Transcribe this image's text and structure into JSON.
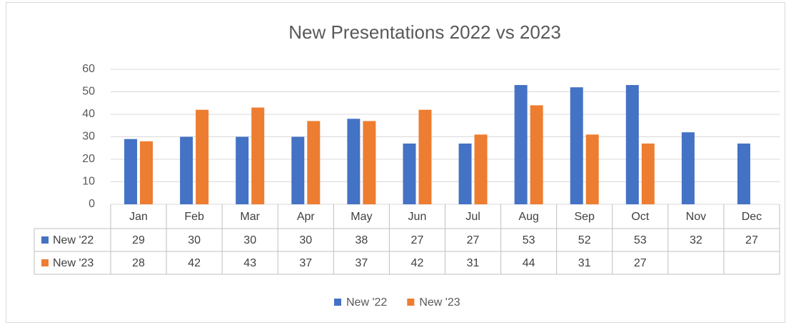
{
  "chart_data": {
    "type": "bar",
    "title": "New Presentations 2022 vs 2023",
    "categories": [
      "Jan",
      "Feb",
      "Mar",
      "Apr",
      "May",
      "Jun",
      "Jul",
      "Aug",
      "Sep",
      "Oct",
      "Nov",
      "Dec"
    ],
    "series": [
      {
        "name": "New '22",
        "color": "#4472c4",
        "values": [
          29,
          30,
          30,
          30,
          38,
          27,
          27,
          53,
          52,
          53,
          32,
          27
        ]
      },
      {
        "name": "New '23",
        "color": "#ed7d31",
        "values": [
          28,
          42,
          43,
          37,
          37,
          42,
          31,
          44,
          31,
          27,
          null,
          null
        ]
      }
    ],
    "ylim": [
      0,
      60
    ],
    "yticks": [
      0,
      10,
      20,
      30,
      40,
      50,
      60
    ],
    "grid": true,
    "legend": "bottom",
    "data_table": true
  }
}
